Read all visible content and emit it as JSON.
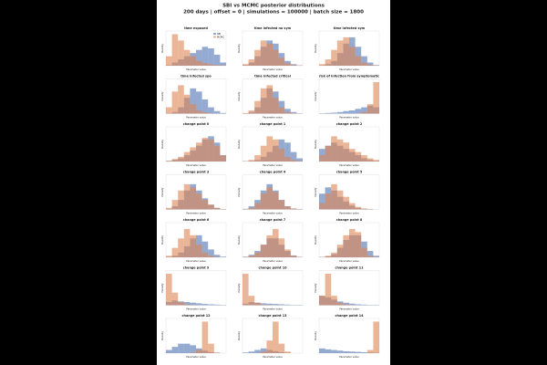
{
  "figure": {
    "title": "SBI vs MCMC posterior distributions",
    "subtitle": "200 days | offset = 0 | simulations = 100000 | batch size = 1800"
  },
  "chart_data": [
    {
      "type": "histogram",
      "title": "time exposed",
      "xlabel": "Parameter value",
      "ylabel": "Density",
      "bins": [
        0,
        1,
        2,
        3,
        4,
        5,
        6,
        7,
        8,
        9,
        10
      ],
      "xlim": [
        0,
        10
      ],
      "ylim": [
        0,
        1.1
      ],
      "legend": "upper right",
      "series": [
        {
          "name": "SBI",
          "color": "#4c72b0",
          "values": [
            0.02,
            0.1,
            0.2,
            0.3,
            0.4,
            0.5,
            0.6,
            0.55,
            0.35,
            0.1
          ]
        },
        {
          "name": "MCMC",
          "color": "#dd8452",
          "values": [
            0.3,
            1,
            0.8,
            0.5,
            0.3,
            0.15,
            0.08,
            0.04,
            0.02,
            0.01
          ]
        }
      ]
    },
    {
      "type": "histogram",
      "title": "time infected no sym",
      "xlabel": "Parameter value",
      "ylabel": "Density",
      "bins": [
        0,
        1,
        2,
        3,
        4,
        5,
        6,
        7,
        8,
        9,
        10
      ],
      "xlim": [
        0,
        10
      ],
      "ylim": [
        0,
        1.1
      ],
      "series": [
        {
          "color": "#4c72b0",
          "values": [
            0.02,
            0.1,
            0.3,
            0.6,
            0.8,
            0.7,
            0.4,
            0.15,
            0.05,
            0.01
          ]
        },
        {
          "color": "#dd8452",
          "values": [
            0.05,
            0.2,
            0.5,
            0.8,
            0.7,
            0.5,
            0.25,
            0.08,
            0.02,
            0.01
          ]
        }
      ]
    },
    {
      "type": "histogram",
      "title": "time infected sym",
      "xlabel": "Parameter value",
      "ylabel": "Density",
      "bins": [
        0,
        1,
        2,
        3,
        4,
        5,
        6,
        7,
        8,
        9,
        10
      ],
      "xlim": [
        0,
        10
      ],
      "ylim": [
        0,
        1.1
      ],
      "series": [
        {
          "color": "#4c72b0",
          "values": [
            0.01,
            0.05,
            0.15,
            0.4,
            0.7,
            0.9,
            0.6,
            0.3,
            0.1,
            0.02
          ]
        },
        {
          "color": "#dd8452",
          "values": [
            0.05,
            0.2,
            0.5,
            0.8,
            0.9,
            0.6,
            0.3,
            0.1,
            0.03,
            0.01
          ]
        }
      ]
    },
    {
      "type": "histogram",
      "title": "time infected spo",
      "xlabel": "Parameter value",
      "ylabel": "Density",
      "bins": [
        0,
        1,
        2,
        3,
        4,
        5,
        6,
        7,
        8,
        9,
        10
      ],
      "xlim": [
        0,
        10
      ],
      "ylim": [
        0,
        1.1
      ],
      "series": [
        {
          "color": "#4c72b0",
          "values": [
            0.01,
            0.05,
            0.2,
            0.5,
            0.8,
            0.7,
            0.45,
            0.2,
            0.08,
            0.02
          ]
        },
        {
          "color": "#dd8452",
          "values": [
            0.2,
            0.7,
            0.9,
            0.6,
            0.3,
            0.1,
            0.04,
            0.01,
            0,
            0
          ]
        }
      ]
    },
    {
      "type": "histogram",
      "title": "time infected critical",
      "xlabel": "Parameter value",
      "ylabel": "Density",
      "bins": [
        0,
        1,
        2,
        3,
        4,
        5,
        6,
        7,
        8,
        9,
        10
      ],
      "xlim": [
        0,
        10
      ],
      "ylim": [
        0,
        1.1
      ],
      "series": [
        {
          "color": "#4c72b0",
          "values": [
            0.01,
            0.05,
            0.2,
            0.5,
            0.8,
            0.7,
            0.4,
            0.15,
            0.05,
            0.01
          ]
        },
        {
          "color": "#dd8452",
          "values": [
            0.02,
            0.1,
            0.4,
            0.8,
            0.9,
            0.5,
            0.2,
            0.05,
            0.01,
            0
          ]
        }
      ]
    },
    {
      "type": "histogram",
      "title": "risk of infection from symptomatic",
      "xlabel": "Parameter value",
      "ylabel": "Density",
      "bins": [
        0,
        1,
        2,
        3,
        4,
        5,
        6,
        7,
        8,
        9,
        10
      ],
      "xlim": [
        0,
        10
      ],
      "ylim": [
        0,
        1.1
      ],
      "series": [
        {
          "color": "#4c72b0",
          "values": [
            0.01,
            0.02,
            0.03,
            0.05,
            0.08,
            0.1,
            0.15,
            0.2,
            0.25,
            0.2
          ]
        },
        {
          "color": "#dd8452",
          "values": [
            0,
            0,
            0,
            0,
            0,
            0,
            0.01,
            0.05,
            0.3,
            1
          ]
        }
      ]
    },
    {
      "type": "histogram",
      "title": "change point 0",
      "xlabel": "Parameter value",
      "ylabel": "Density",
      "bins": [
        0,
        1,
        2,
        3,
        4,
        5,
        6,
        7,
        8,
        9,
        10
      ],
      "xlim": [
        0,
        10
      ],
      "ylim": [
        0,
        1.1
      ],
      "series": [
        {
          "color": "#4c72b0",
          "values": [
            0.02,
            0.05,
            0.1,
            0.2,
            0.35,
            0.5,
            0.7,
            0.8,
            0.6,
            0.2
          ]
        },
        {
          "color": "#dd8452",
          "values": [
            0.02,
            0.08,
            0.15,
            0.3,
            0.45,
            0.6,
            0.75,
            0.7,
            0.5,
            0.2
          ]
        }
      ]
    },
    {
      "type": "histogram",
      "title": "change point 1",
      "xlabel": "Parameter value",
      "ylabel": "Density",
      "bins": [
        0,
        1,
        2,
        3,
        4,
        5,
        6,
        7,
        8,
        9,
        10
      ],
      "xlim": [
        0,
        10
      ],
      "ylim": [
        0,
        1.1
      ],
      "series": [
        {
          "color": "#4c72b0",
          "values": [
            0.01,
            0.02,
            0.05,
            0.15,
            0.3,
            0.5,
            0.7,
            0.6,
            0.3,
            0.1
          ]
        },
        {
          "color": "#dd8452",
          "values": [
            0.01,
            0.05,
            0.2,
            0.5,
            0.8,
            0.7,
            0.4,
            0.15,
            0.05,
            0.01
          ]
        }
      ]
    },
    {
      "type": "histogram",
      "title": "change point 2",
      "xlabel": "Parameter value",
      "ylabel": "Density",
      "bins": [
        0,
        1,
        2,
        3,
        4,
        5,
        6,
        7,
        8,
        9,
        10
      ],
      "xlim": [
        0,
        10
      ],
      "ylim": [
        0,
        1.1
      ],
      "series": [
        {
          "color": "#4c72b0",
          "values": [
            0.4,
            0.5,
            0.6,
            0.5,
            0.4,
            0.3,
            0.2,
            0.1,
            0.05,
            0.02
          ]
        },
        {
          "color": "#dd8452",
          "values": [
            0.2,
            0.5,
            0.8,
            0.7,
            0.6,
            0.4,
            0.3,
            0.2,
            0.1,
            0.05
          ]
        }
      ]
    },
    {
      "type": "histogram",
      "title": "change point 3",
      "xlabel": "Parameter value",
      "ylabel": "Density",
      "bins": [
        0,
        1,
        2,
        3,
        4,
        5,
        6,
        7,
        8,
        9,
        10
      ],
      "xlim": [
        0,
        10
      ],
      "ylim": [
        0,
        1.1
      ],
      "series": [
        {
          "color": "#4c72b0",
          "values": [
            0.02,
            0.1,
            0.3,
            0.6,
            0.8,
            0.6,
            0.35,
            0.15,
            0.05,
            0.01
          ]
        },
        {
          "color": "#dd8452",
          "values": [
            0.05,
            0.3,
            0.6,
            0.8,
            0.7,
            0.5,
            0.3,
            0.15,
            0.05,
            0.01
          ]
        }
      ]
    },
    {
      "type": "histogram",
      "title": "change point 4",
      "xlabel": "Parameter value",
      "ylabel": "Density",
      "bins": [
        0,
        1,
        2,
        3,
        4,
        5,
        6,
        7,
        8,
        9,
        10
      ],
      "xlim": [
        0,
        10
      ],
      "ylim": [
        0,
        1.1
      ],
      "series": [
        {
          "color": "#4c72b0",
          "values": [
            0.02,
            0.1,
            0.3,
            0.6,
            0.8,
            0.6,
            0.3,
            0.1,
            0.03,
            0.01
          ]
        },
        {
          "color": "#dd8452",
          "values": [
            0.01,
            0.05,
            0.2,
            0.5,
            0.7,
            0.55,
            0.3,
            0.1,
            0.03,
            0.01
          ]
        }
      ]
    },
    {
      "type": "histogram",
      "title": "change point 5",
      "xlabel": "Parameter value",
      "ylabel": "Density",
      "bins": [
        0,
        1,
        2,
        3,
        4,
        5,
        6,
        7,
        8,
        9,
        10
      ],
      "xlim": [
        0,
        10
      ],
      "ylim": [
        0,
        1.1
      ],
      "series": [
        {
          "color": "#4c72b0",
          "values": [
            0.5,
            0.7,
            0.6,
            0.4,
            0.25,
            0.12,
            0.05,
            0.02,
            0.01,
            0
          ]
        },
        {
          "color": "#dd8452",
          "values": [
            0.2,
            0.5,
            0.8,
            0.6,
            0.4,
            0.2,
            0.08,
            0.03,
            0.01,
            0
          ]
        }
      ]
    },
    {
      "type": "histogram",
      "title": "change point 6",
      "xlabel": "Parameter value",
      "ylabel": "Density",
      "bins": [
        0,
        1,
        2,
        3,
        4,
        5,
        6,
        7,
        8,
        9,
        10
      ],
      "xlim": [
        0,
        10
      ],
      "ylim": [
        0,
        1.1
      ],
      "series": [
        {
          "color": "#4c72b0",
          "values": [
            0.01,
            0.05,
            0.15,
            0.35,
            0.6,
            0.7,
            0.5,
            0.25,
            0.08,
            0.02
          ]
        },
        {
          "color": "#dd8452",
          "values": [
            0.05,
            0.3,
            0.6,
            0.9,
            0.7,
            0.4,
            0.15,
            0.05,
            0.01,
            0
          ]
        }
      ]
    },
    {
      "type": "histogram",
      "title": "change point 7",
      "xlabel": "Parameter value",
      "ylabel": "Density",
      "bins": [
        0,
        1,
        2,
        3,
        4,
        5,
        6,
        7,
        8,
        9,
        10
      ],
      "xlim": [
        0,
        10
      ],
      "ylim": [
        0,
        1.1
      ],
      "series": [
        {
          "color": "#4c72b0",
          "values": [
            0.02,
            0.08,
            0.2,
            0.4,
            0.6,
            0.6,
            0.4,
            0.2,
            0.06,
            0.01
          ]
        },
        {
          "color": "#dd8452",
          "values": [
            0.01,
            0.05,
            0.15,
            0.4,
            0.7,
            0.9,
            0.6,
            0.25,
            0.05,
            0.01
          ]
        }
      ]
    },
    {
      "type": "histogram",
      "title": "change point 8",
      "xlabel": "Parameter value",
      "ylabel": "Density",
      "bins": [
        0,
        1,
        2,
        3,
        4,
        5,
        6,
        7,
        8,
        9,
        10
      ],
      "xlim": [
        0,
        10
      ],
      "ylim": [
        0,
        1.1
      ],
      "series": [
        {
          "color": "#4c72b0",
          "values": [
            0.01,
            0.03,
            0.1,
            0.3,
            0.55,
            0.7,
            0.7,
            0.5,
            0.2,
            0.05
          ]
        },
        {
          "color": "#dd8452",
          "values": [
            0.01,
            0.05,
            0.15,
            0.4,
            0.7,
            0.9,
            0.8,
            0.3,
            0.05,
            0.01
          ]
        }
      ]
    },
    {
      "type": "histogram",
      "title": "change point 9",
      "xlabel": "Parameter value",
      "ylabel": "Density",
      "bins": [
        0,
        1,
        2,
        3,
        4,
        5,
        6,
        7,
        8,
        9,
        10
      ],
      "xlim": [
        0,
        10
      ],
      "ylim": [
        0,
        1.1
      ],
      "series": [
        {
          "color": "#4c72b0",
          "values": [
            0.1,
            0.15,
            0.12,
            0.1,
            0.08,
            0.06,
            0.04,
            0.03,
            0.02,
            0.01
          ]
        },
        {
          "color": "#dd8452",
          "values": [
            1,
            0.4,
            0.1,
            0.03,
            0.01,
            0,
            0,
            0,
            0,
            0
          ]
        }
      ]
    },
    {
      "type": "histogram",
      "title": "change point 10",
      "xlabel": "Parameter value",
      "ylabel": "Density",
      "bins": [
        0,
        1,
        2,
        3,
        4,
        5,
        6,
        7,
        8,
        9,
        10
      ],
      "xlim": [
        0,
        10
      ],
      "ylim": [
        0,
        1.1
      ],
      "series": [
        {
          "color": "#4c72b0",
          "values": [
            0.05,
            0.1,
            0.08,
            0.06,
            0.05,
            0.04,
            0.03,
            0.02,
            0.01,
            0.01
          ]
        },
        {
          "color": "#dd8452",
          "values": [
            1,
            0.3,
            0.08,
            0.02,
            0.01,
            0,
            0,
            0,
            0,
            0
          ]
        }
      ]
    },
    {
      "type": "histogram",
      "title": "change point 11",
      "xlabel": "Parameter value",
      "ylabel": "Density",
      "bins": [
        0,
        1,
        2,
        3,
        4,
        5,
        6,
        7,
        8,
        9,
        10
      ],
      "xlim": [
        0,
        10
      ],
      "ylim": [
        0,
        1.1
      ],
      "series": [
        {
          "color": "#4c72b0",
          "values": [
            0.3,
            0.25,
            0.18,
            0.12,
            0.08,
            0.05,
            0.03,
            0.02,
            0.01,
            0.01
          ]
        },
        {
          "color": "#dd8452",
          "values": [
            0.3,
            1,
            0.3,
            0.08,
            0.03,
            0.01,
            0,
            0,
            0,
            0
          ]
        }
      ]
    },
    {
      "type": "histogram",
      "title": "change point 12",
      "xlabel": "Parameter value",
      "ylabel": "Density",
      "bins": [
        0,
        1,
        2,
        3,
        4,
        5,
        6,
        7,
        8,
        9,
        10
      ],
      "xlim": [
        0,
        10
      ],
      "ylim": [
        0,
        1.1
      ],
      "series": [
        {
          "color": "#4c72b0",
          "values": [
            0.1,
            0.2,
            0.3,
            0.3,
            0.25,
            0.15,
            0.08,
            0.03,
            0.01,
            0
          ]
        },
        {
          "color": "#dd8452",
          "values": [
            0,
            0,
            0,
            0,
            0.02,
            0.1,
            1,
            0.3,
            0.02,
            0
          ]
        }
      ]
    },
    {
      "type": "histogram",
      "title": "change point 13",
      "xlabel": "Parameter value",
      "ylabel": "Density",
      "bins": [
        0,
        1,
        2,
        3,
        4,
        5,
        6,
        7,
        8,
        9,
        10
      ],
      "xlim": [
        0,
        10
      ],
      "ylim": [
        0,
        1.1
      ],
      "series": [
        {
          "color": "#4c72b0",
          "values": [
            0.02,
            0.05,
            0.1,
            0.15,
            0.1,
            0.06,
            0.03,
            0.01,
            0,
            0
          ]
        },
        {
          "color": "#dd8452",
          "values": [
            0,
            0,
            0,
            0.05,
            0.4,
            1,
            0.3,
            0.05,
            0,
            0
          ]
        }
      ]
    },
    {
      "type": "histogram",
      "title": "change point 14",
      "xlabel": "Parameter value",
      "ylabel": "Density",
      "bins": [
        0,
        1,
        2,
        3,
        4,
        5,
        6,
        7,
        8,
        9,
        10
      ],
      "xlim": [
        0,
        10
      ],
      "ylim": [
        0,
        1.1
      ],
      "series": [
        {
          "color": "#4c72b0",
          "values": [
            0.15,
            0.12,
            0.1,
            0.08,
            0.06,
            0.05,
            0.04,
            0.03,
            0.02,
            0.01
          ]
        },
        {
          "color": "#dd8452",
          "values": [
            0,
            0,
            0,
            0,
            0,
            0,
            0,
            0,
            0.1,
            1
          ]
        }
      ]
    }
  ]
}
